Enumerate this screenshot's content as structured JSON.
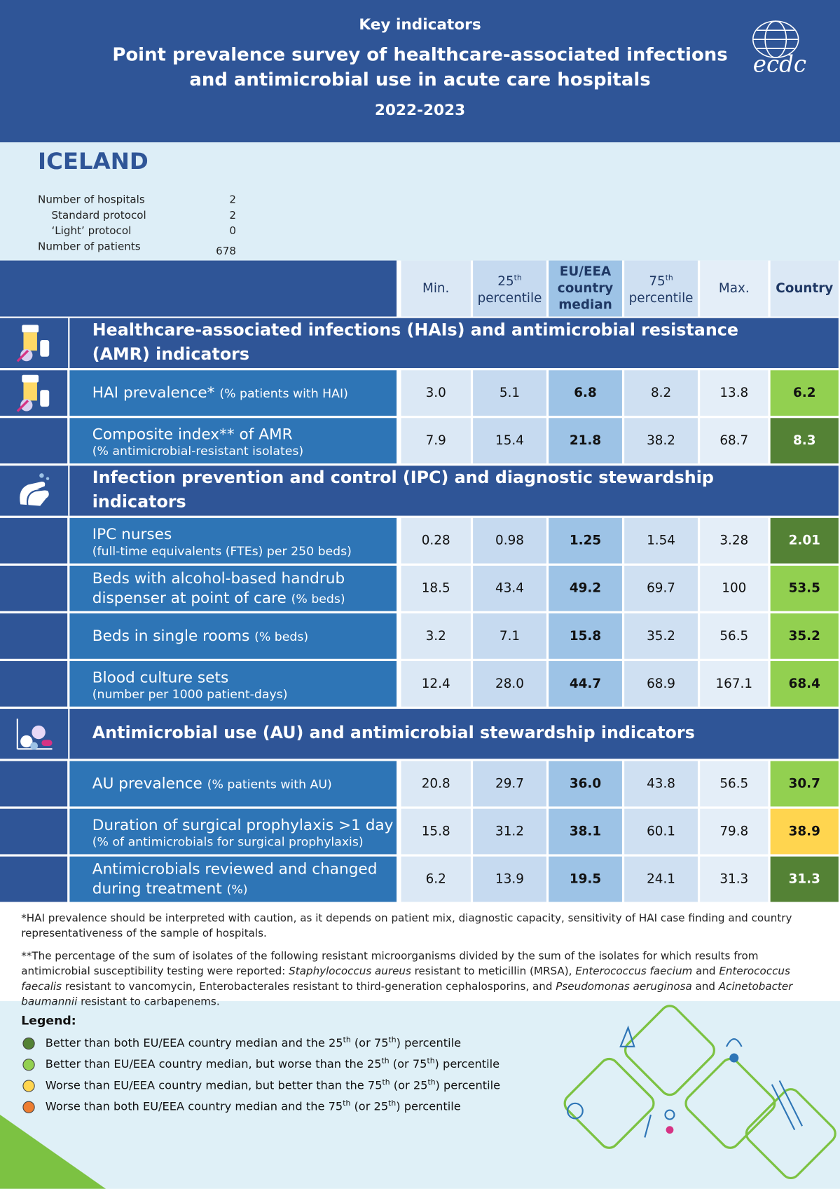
{
  "header": {
    "kicker": "Key indicators",
    "title_lines": [
      "Point prevalence survey of healthcare-associated infections",
      "and antimicrobial use in acute care hospitals"
    ],
    "years": "2022-2023",
    "logo_text": "ecdc"
  },
  "country": {
    "name": "ICELAND",
    "stats": [
      {
        "label": "Number of hospitals",
        "value": 2,
        "breakdown": [
          {
            "label": "Standard protocol",
            "value": 2
          },
          {
            "label": "‘Light’ protocol",
            "value": 0
          }
        ]
      },
      {
        "label": "Number of patients",
        "value": 678
      }
    ]
  },
  "table": {
    "columns": [
      {
        "lines": [
          "Min."
        ]
      },
      {
        "ordinal": "25",
        "suffix": "th",
        "text": "percentile"
      },
      {
        "lines": [
          "EU/EEA",
          "country",
          "median"
        ],
        "bold": true
      },
      {
        "ordinal": "75",
        "suffix": "th",
        "text": "percentile"
      },
      {
        "lines": [
          "Max."
        ]
      },
      {
        "lines": [
          "Country"
        ],
        "bold": true
      }
    ],
    "sections": [
      {
        "title_lines": [
          "Healthcare-associated infections (HAIs) and antimicrobial resistance",
          "(AMR) indicators"
        ],
        "rows": [
          {
            "lines": [
              {
                "text": "HAI prevalence*",
                "note": "(% patients with HAI)"
              }
            ],
            "values": [
              "3.0",
              "5.1",
              "6.8",
              "8.2",
              "13.8",
              "6.2"
            ],
            "status": 1
          },
          {
            "lines": [
              {
                "text": "Composite index** of AMR"
              },
              {
                "note": "(% antimicrobial-resistant isolates)"
              }
            ],
            "values": [
              "7.9",
              "15.4",
              "21.8",
              "38.2",
              "68.7",
              "8.3"
            ],
            "status": 0
          }
        ]
      },
      {
        "title_lines": [
          "Infection prevention and control (IPC) and diagnostic stewardship",
          "indicators"
        ],
        "rows": [
          {
            "lines": [
              {
                "text": "IPC nurses"
              },
              {
                "note": "(full-time equivalents (FTEs) per 250 beds)"
              }
            ],
            "values": [
              "0.28",
              "0.98",
              "1.25",
              "1.54",
              "3.28",
              "2.01"
            ],
            "status": 0
          },
          {
            "lines": [
              {
                "text": "Beds with alcohol-based handrub"
              },
              {
                "text": "dispenser at point of care",
                "note": "(% beds)"
              }
            ],
            "values": [
              "18.5",
              "43.4",
              "49.2",
              "69.7",
              "100",
              "53.5"
            ],
            "status": 1
          },
          {
            "lines": [
              {
                "text": "Beds in single rooms",
                "note": "(% beds)"
              }
            ],
            "values": [
              "3.2",
              "7.1",
              "15.8",
              "35.2",
              "56.5",
              "35.2"
            ],
            "status": 1
          },
          {
            "lines": [
              {
                "text": "Blood culture sets"
              },
              {
                "note": "(number per 1000 patient-days)"
              }
            ],
            "values": [
              "12.4",
              "28.0",
              "44.7",
              "68.9",
              "167.1",
              "68.4"
            ],
            "status": 1
          }
        ]
      },
      {
        "title_lines": [
          "Antimicrobial use (AU) and antimicrobial stewardship indicators"
        ],
        "rows": [
          {
            "lines": [
              {
                "text": "AU prevalence",
                "note": "(% patients with AU)"
              }
            ],
            "values": [
              "20.8",
              "29.7",
              "36.0",
              "43.8",
              "56.5",
              "30.7"
            ],
            "status": 1
          },
          {
            "lines": [
              {
                "text": "Duration of surgical prophylaxis >1 day"
              },
              {
                "note": "(% of antimicrobials for surgical prophylaxis)"
              }
            ],
            "values": [
              "15.8",
              "31.2",
              "38.1",
              "60.1",
              "79.8",
              "38.9"
            ],
            "status": 2
          },
          {
            "lines": [
              {
                "text": "Antimicrobials reviewed and changed"
              },
              {
                "text": "during treatment",
                "note": "(%)"
              }
            ],
            "values": [
              "6.2",
              "13.9",
              "19.5",
              "24.1",
              "31.3",
              "31.3"
            ],
            "status": 0
          }
        ]
      }
    ]
  },
  "footnotes": [
    [
      {
        "text": "*HAI prevalence should be interpreted with caution, as it depends on patient mix, diagnostic capacity, sensitivity of HAI case finding and country representativeness of the sample of hospitals."
      }
    ],
    [
      {
        "text": "**The percentage of the sum of isolates of the following resistant microorganisms divided by the sum of the isolates for which results from antimicrobial susceptibility testing were reported: "
      },
      {
        "text": "Staphylococcus aureus",
        "italic": true
      },
      {
        "text": " resistant to meticillin (MRSA), "
      },
      {
        "text": "Enterococcus faecium",
        "italic": true
      },
      {
        "text": " and "
      },
      {
        "text": "Enterococcus faecalis",
        "italic": true
      },
      {
        "text": " resistant to vancomycin, Enterobacterales resistant to third-generation cephalosporins, and "
      },
      {
        "text": "Pseudomonas aeruginosa",
        "italic": true
      },
      {
        "text": " and "
      },
      {
        "text": "Acinetobacter baumannii",
        "italic": true
      },
      {
        "text": " resistant to carbapenems."
      }
    ]
  ],
  "legend": {
    "title": "Legend:",
    "items": [
      {
        "color": "#548235",
        "segments": [
          {
            "text": "Better than both EU/EEA country median and the 25"
          },
          {
            "text": "th",
            "sup": true
          },
          {
            "text": " (or 75"
          },
          {
            "text": "th",
            "sup": true
          },
          {
            "text": ") percentile"
          }
        ]
      },
      {
        "color": "#92d050",
        "segments": [
          {
            "text": "Better than EU/EEA country median, but worse than the 25"
          },
          {
            "text": "th",
            "sup": true
          },
          {
            "text": " (or 75"
          },
          {
            "text": "th",
            "sup": true
          },
          {
            "text": ") percentile"
          }
        ]
      },
      {
        "color": "#ffd54f",
        "segments": [
          {
            "text": "Worse than EU/EEA country median, but better than the 75"
          },
          {
            "text": "th",
            "sup": true
          },
          {
            "text": " (or 25"
          },
          {
            "text": "th",
            "sup": true
          },
          {
            "text": ") percentile"
          }
        ]
      },
      {
        "color": "#ed7d31",
        "segments": [
          {
            "text": "Worse than both EU/EEA country median and the 75"
          },
          {
            "text": "th",
            "sup": true
          },
          {
            "text": " (or 25"
          },
          {
            "text": "th",
            "sup": true
          },
          {
            "text": ") percentile"
          }
        ]
      }
    ]
  }
}
